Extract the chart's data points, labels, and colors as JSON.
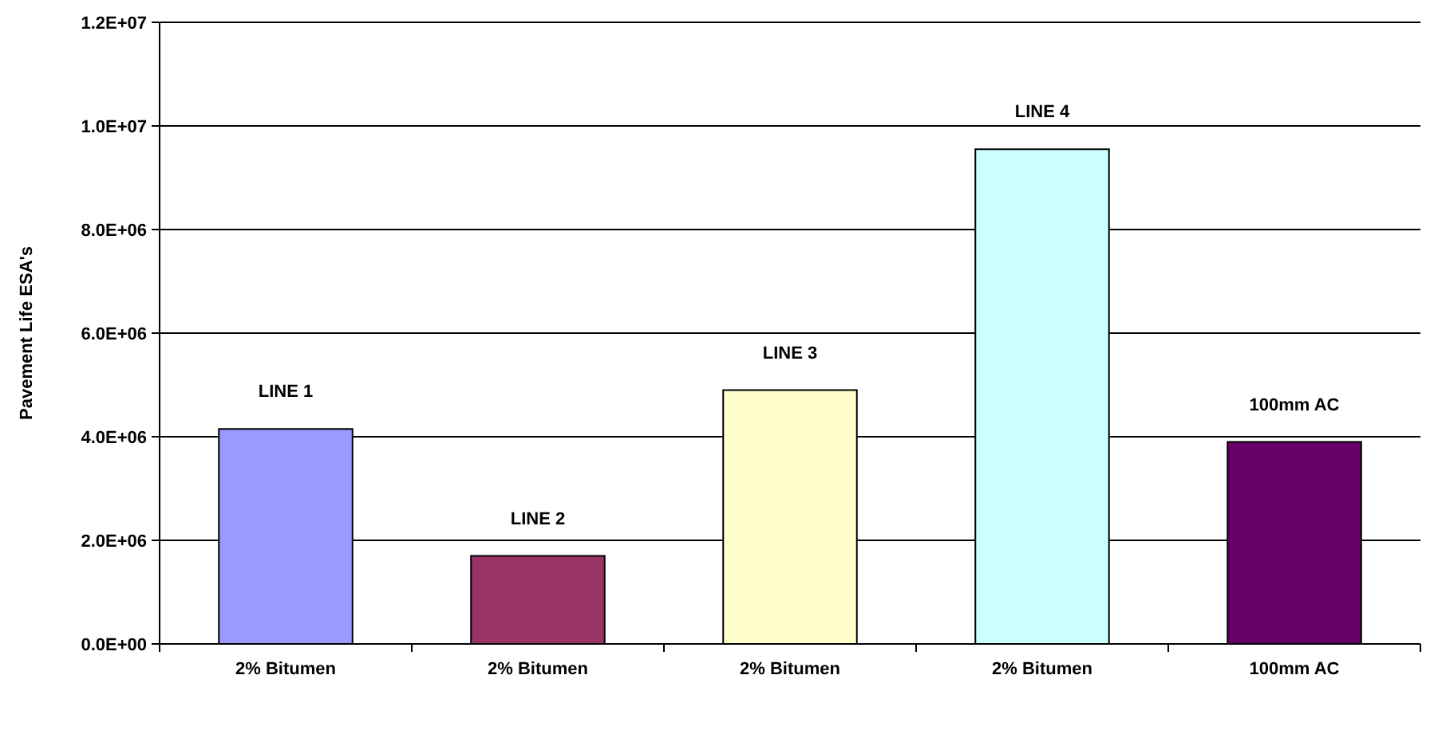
{
  "chart_data": {
    "type": "bar",
    "ylabel": "Pavement Life ESA's",
    "categories": [
      "2% Bitumen",
      "2% Bitumen",
      "2% Bitumen",
      "2% Bitumen",
      "100mm AC"
    ],
    "values": [
      4150000,
      1700000,
      4900000,
      9550000,
      3900000
    ],
    "colors": [
      "#9999ff",
      "#993366",
      "#ffffcc",
      "#ccffff",
      "#660066"
    ],
    "annotations": [
      {
        "text": "LINE 1",
        "y": 4150000
      },
      {
        "text": "LINE 2",
        "y": 1700000
      },
      {
        "text": "LINE 3",
        "y": 4900000
      },
      {
        "text": "LINE 4",
        "y": 9550000
      },
      {
        "text": "100mm AC",
        "y": 3900000
      }
    ],
    "ylim": [
      0,
      12000000
    ],
    "yticks": [
      {
        "value": 0,
        "label": "0.0E+00"
      },
      {
        "value": 2000000,
        "label": "2.0E+06"
      },
      {
        "value": 4000000,
        "label": "4.0E+06"
      },
      {
        "value": 6000000,
        "label": "6.0E+06"
      },
      {
        "value": 8000000,
        "label": "8.0E+06"
      },
      {
        "value": 10000000,
        "label": "1.0E+07"
      },
      {
        "value": 12000000,
        "label": "1.2E+07"
      }
    ],
    "grid": "y"
  }
}
